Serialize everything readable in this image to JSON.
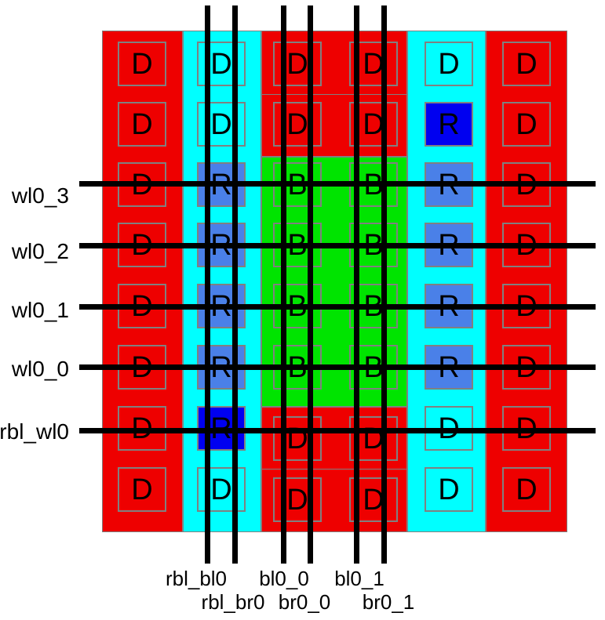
{
  "diagram": {
    "description": "SRAM replica bitcell array layout view with dummy (D), replica (R) and bitcell (B) instances",
    "colors": {
      "dummy_red": "#ee0000",
      "replica_cyan": "#00ffff",
      "bitcell_green": "#00e400",
      "replica_dark_blue": "#0000f0",
      "replica_light_blue": "#4a80e8",
      "outline_gray": "#808080",
      "wire_black": "#000000",
      "background": "#ffffff"
    },
    "columns": [
      {
        "name": "dummy-column-left",
        "fill": "dummy_red"
      },
      {
        "name": "replica-column-left",
        "fill": "replica_cyan"
      },
      {
        "name": "bitcell-column-0",
        "fill": "bitcell_green"
      },
      {
        "name": "bitcell-column-1",
        "fill": "bitcell_green"
      },
      {
        "name": "replica-column-right",
        "fill": "replica_cyan"
      },
      {
        "name": "dummy-column-right",
        "fill": "dummy_red"
      }
    ],
    "rows": [
      {
        "cells": [
          {
            "letter": "D"
          },
          {
            "letter": "D"
          },
          {
            "letter": "D"
          },
          {
            "letter": "D"
          },
          {
            "letter": "D"
          },
          {
            "letter": "D"
          }
        ]
      },
      {
        "cells": [
          {
            "letter": "D"
          },
          {
            "letter": "D"
          },
          {
            "letter": "D"
          },
          {
            "letter": "D"
          },
          {
            "letter": "R",
            "fill": "replica_dark_blue"
          },
          {
            "letter": "D"
          }
        ]
      },
      {
        "cells": [
          {
            "letter": "D"
          },
          {
            "letter": "R",
            "fill": "replica_light_blue"
          },
          {
            "letter": "B"
          },
          {
            "letter": "B"
          },
          {
            "letter": "R",
            "fill": "replica_light_blue"
          },
          {
            "letter": "D"
          }
        ]
      },
      {
        "cells": [
          {
            "letter": "D"
          },
          {
            "letter": "R",
            "fill": "replica_light_blue"
          },
          {
            "letter": "B"
          },
          {
            "letter": "B"
          },
          {
            "letter": "R",
            "fill": "replica_light_blue"
          },
          {
            "letter": "D"
          }
        ]
      },
      {
        "cells": [
          {
            "letter": "D"
          },
          {
            "letter": "R",
            "fill": "replica_light_blue"
          },
          {
            "letter": "B"
          },
          {
            "letter": "B"
          },
          {
            "letter": "R",
            "fill": "replica_light_blue"
          },
          {
            "letter": "D"
          }
        ]
      },
      {
        "cells": [
          {
            "letter": "D"
          },
          {
            "letter": "R",
            "fill": "replica_light_blue"
          },
          {
            "letter": "B"
          },
          {
            "letter": "B"
          },
          {
            "letter": "R",
            "fill": "replica_light_blue"
          },
          {
            "letter": "D"
          }
        ]
      },
      {
        "cells": [
          {
            "letter": "D"
          },
          {
            "letter": "R",
            "fill": "replica_dark_blue"
          },
          {
            "letter": "D"
          },
          {
            "letter": "D"
          },
          {
            "letter": "D"
          },
          {
            "letter": "D"
          }
        ]
      },
      {
        "cells": [
          {
            "letter": "D"
          },
          {
            "letter": "D"
          },
          {
            "letter": "D"
          },
          {
            "letter": "D"
          },
          {
            "letter": "D"
          },
          {
            "letter": "D"
          }
        ]
      }
    ],
    "wordlines": [
      {
        "label": "wl0_3"
      },
      {
        "label": "wl0_2"
      },
      {
        "label": "wl0_1"
      },
      {
        "label": "wl0_0"
      },
      {
        "label": "rbl_wl0"
      }
    ],
    "bitlines": [
      {
        "label": "rbl_bl0"
      },
      {
        "label": "rbl_br0"
      },
      {
        "label": "bl0_0"
      },
      {
        "label": "br0_0"
      },
      {
        "label": "bl0_1"
      },
      {
        "label": "br0_1"
      }
    ]
  }
}
